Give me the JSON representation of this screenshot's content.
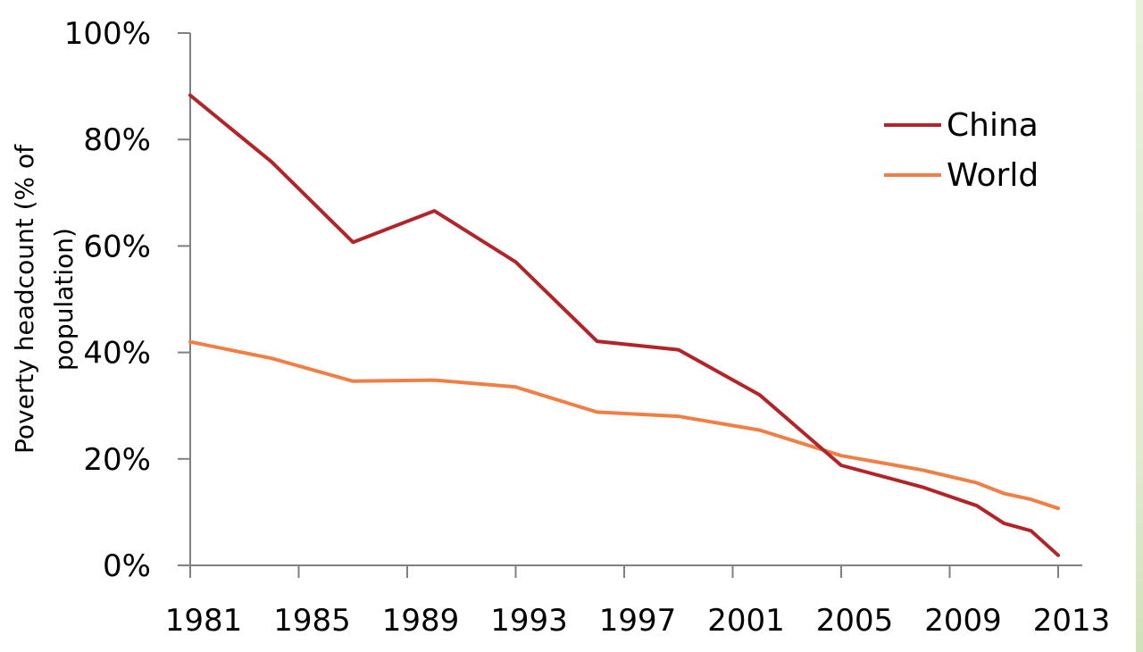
{
  "chart_data": {
    "type": "line",
    "title": "",
    "xlabel": "",
    "ylabel": "Poverty headcount (% of population)",
    "ylabel_lines": [
      "Poverty headcount (% of",
      "population)"
    ],
    "x_ticks": [
      1981,
      1985,
      1989,
      1993,
      1997,
      2001,
      2005,
      2009,
      2013
    ],
    "xlim": [
      1981,
      2013
    ],
    "y_ticks": [
      "0%",
      "20%",
      "40%",
      "60%",
      "80%",
      "100%"
    ],
    "ylim": [
      0,
      100
    ],
    "grid": false,
    "legend_position": "top-right",
    "series": [
      {
        "name": "China",
        "color": "#b22428",
        "x": [
          1981,
          1984,
          1987,
          1990,
          1993,
          1996,
          1999,
          2002,
          2005,
          2008,
          2010,
          2011,
          2012,
          2013
        ],
        "values": [
          88.3,
          75.8,
          60.7,
          66.6,
          57.0,
          42.1,
          40.5,
          32.0,
          18.8,
          14.7,
          11.2,
          7.9,
          6.5,
          1.9
        ]
      },
      {
        "name": "World",
        "color": "#f07f45",
        "x": [
          1981,
          1984,
          1987,
          1990,
          1993,
          1996,
          1999,
          2002,
          2005,
          2008,
          2010,
          2011,
          2012,
          2013
        ],
        "values": [
          42.0,
          38.9,
          34.6,
          34.8,
          33.5,
          28.8,
          28.0,
          25.4,
          20.6,
          17.9,
          15.5,
          13.5,
          12.4,
          10.7
        ]
      }
    ]
  }
}
